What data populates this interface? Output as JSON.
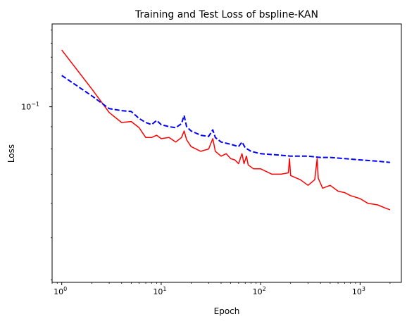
{
  "chart_data": {
    "type": "line",
    "title": "Training and Test Loss of bspline-KAN",
    "xlabel": "Epoch",
    "ylabel": "Loss",
    "xscale": "log",
    "yscale": "log",
    "xlim": [
      0.8,
      2600
    ],
    "ylim": [
      0.0395,
      0.155
    ],
    "grid": false,
    "legend": "none",
    "x_ticks": [
      {
        "value": 1,
        "base": "10",
        "exp": "0"
      },
      {
        "value": 10,
        "base": "10",
        "exp": "1"
      },
      {
        "value": 100,
        "base": "10",
        "exp": "2"
      },
      {
        "value": 1000,
        "base": "10",
        "exp": "3"
      }
    ],
    "y_ticks": [
      {
        "value": 0.1,
        "base": "10",
        "exp": "−1"
      }
    ],
    "series": [
      {
        "color": "#ff0000",
        "style": "solid",
        "points": [
          [
            1,
            0.135
          ],
          [
            2,
            0.11
          ],
          [
            3,
            0.097
          ],
          [
            4,
            0.092
          ],
          [
            5,
            0.0925
          ],
          [
            6,
            0.0895
          ],
          [
            7,
            0.085
          ],
          [
            8,
            0.085
          ],
          [
            9,
            0.086
          ],
          [
            10,
            0.0845
          ],
          [
            12,
            0.085
          ],
          [
            14,
            0.083
          ],
          [
            16,
            0.085
          ],
          [
            17,
            0.088
          ],
          [
            18,
            0.084
          ],
          [
            20,
            0.081
          ],
          [
            25,
            0.079
          ],
          [
            30,
            0.08
          ],
          [
            33,
            0.0845
          ],
          [
            35,
            0.079
          ],
          [
            40,
            0.077
          ],
          [
            45,
            0.078
          ],
          [
            50,
            0.076
          ],
          [
            55,
            0.0755
          ],
          [
            60,
            0.074
          ],
          [
            65,
            0.078
          ],
          [
            68,
            0.074
          ],
          [
            72,
            0.077
          ],
          [
            75,
            0.0735
          ],
          [
            85,
            0.072
          ],
          [
            100,
            0.072
          ],
          [
            130,
            0.07
          ],
          [
            160,
            0.07
          ],
          [
            190,
            0.0705
          ],
          [
            195,
            0.076
          ],
          [
            200,
            0.0695
          ],
          [
            250,
            0.068
          ],
          [
            300,
            0.066
          ],
          [
            350,
            0.068
          ],
          [
            370,
            0.076
          ],
          [
            380,
            0.0685
          ],
          [
            420,
            0.065
          ],
          [
            500,
            0.066
          ],
          [
            600,
            0.064
          ],
          [
            700,
            0.0635
          ],
          [
            800,
            0.0625
          ],
          [
            1000,
            0.0615
          ],
          [
            1200,
            0.06
          ],
          [
            1500,
            0.0595
          ],
          [
            1800,
            0.0585
          ],
          [
            2000,
            0.058
          ]
        ]
      },
      {
        "color": "#0000ff",
        "style": "dashed",
        "points": [
          [
            1,
            0.118
          ],
          [
            2,
            0.106
          ],
          [
            3,
            0.099
          ],
          [
            4,
            0.098
          ],
          [
            5,
            0.0975
          ],
          [
            6,
            0.094
          ],
          [
            7,
            0.092
          ],
          [
            8,
            0.091
          ],
          [
            9,
            0.093
          ],
          [
            10,
            0.091
          ],
          [
            12,
            0.09
          ],
          [
            14,
            0.0895
          ],
          [
            16,
            0.0915
          ],
          [
            17,
            0.0955
          ],
          [
            18,
            0.09
          ],
          [
            20,
            0.088
          ],
          [
            25,
            0.086
          ],
          [
            30,
            0.0855
          ],
          [
            33,
            0.0885
          ],
          [
            35,
            0.085
          ],
          [
            40,
            0.083
          ],
          [
            50,
            0.082
          ],
          [
            60,
            0.081
          ],
          [
            65,
            0.083
          ],
          [
            70,
            0.0805
          ],
          [
            80,
            0.079
          ],
          [
            100,
            0.078
          ],
          [
            150,
            0.0775
          ],
          [
            200,
            0.077
          ],
          [
            300,
            0.077
          ],
          [
            400,
            0.0765
          ],
          [
            500,
            0.0765
          ],
          [
            700,
            0.076
          ],
          [
            1000,
            0.0755
          ],
          [
            1500,
            0.075
          ],
          [
            2000,
            0.0745
          ]
        ]
      }
    ]
  }
}
